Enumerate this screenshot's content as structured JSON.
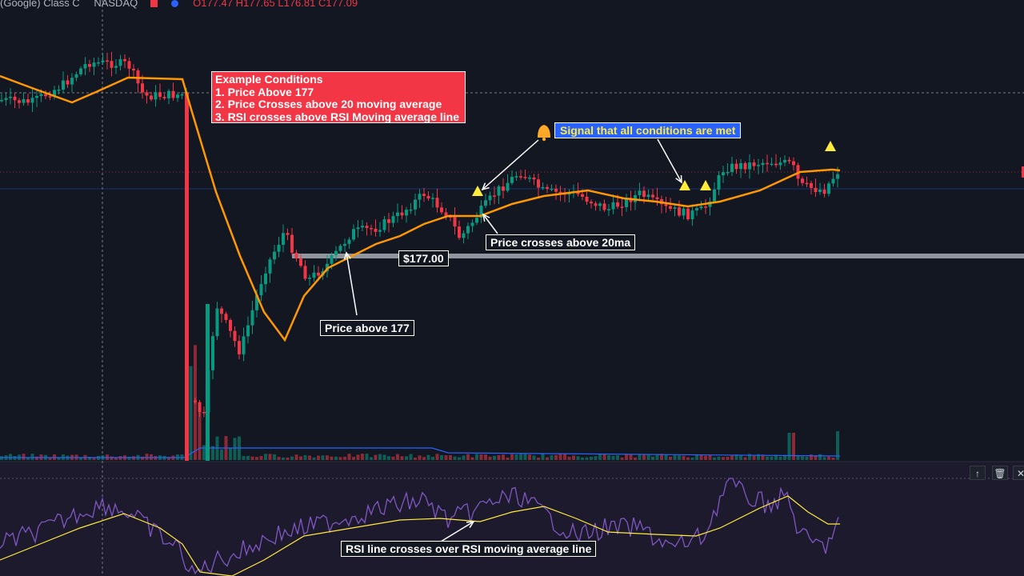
{
  "header": {
    "symbol": "(Google) Class C",
    "exchange": "NASDAQ",
    "ohlc": "O177.47 H177.65 L176.81 C177.09"
  },
  "annotations": {
    "conditions_title": "Example Conditions",
    "conditions": [
      "1. Price Above 177",
      "2. Price Crosses above 20 moving average",
      "3. RSI crosses above RSI Moving average line"
    ],
    "signal_label": "Signal that all conditions are met",
    "price_level_label": "$177.00",
    "ma_cross_label": "Price crosses above 20ma",
    "price_above_label": "Price above 177",
    "rsi_cross_label": "RSI line crosses over RSI moving average line"
  },
  "pane_controls": {
    "up": "↑",
    "delete": "🗑",
    "close": "✕"
  },
  "colors": {
    "background": "#131722",
    "bull": "#089981",
    "bear": "#f23645",
    "ma_line": "#ff9800",
    "rsi_line": "#7e57c2",
    "rsi_ma": "#ffeb3b",
    "alert_marker": "#ffeb3b",
    "condition_box": "#f23645",
    "signal_box": "#2962ff"
  }
}
